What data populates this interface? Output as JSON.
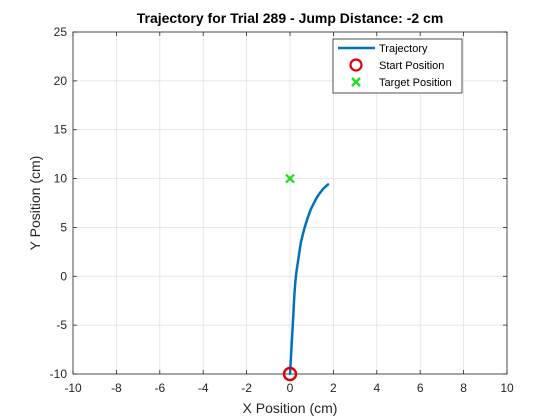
{
  "chart_data": {
    "type": "line",
    "title": "Trajectory for Trial 289 - Jump Distance: -2 cm",
    "xlabel": "X Position (cm)",
    "ylabel": "Y Position (cm)",
    "xlim": [
      -10,
      10
    ],
    "ylim": [
      -10,
      25
    ],
    "xticks": [
      -10,
      -8,
      -6,
      -4,
      -2,
      0,
      2,
      4,
      6,
      8,
      10
    ],
    "yticks": [
      -10,
      -5,
      0,
      5,
      10,
      15,
      20,
      25
    ],
    "grid": true,
    "legend_position": "top-right",
    "legend": [
      {
        "label": "Trajectory",
        "marker": "line",
        "color": "#0072BD"
      },
      {
        "label": "Start Position",
        "marker": "circle",
        "color": "#E0000A"
      },
      {
        "label": "Target Position",
        "marker": "x",
        "color": "#22DD22"
      }
    ],
    "series": [
      {
        "name": "Trajectory",
        "color": "#0072BD",
        "x": [
          0.0,
          0.05,
          0.1,
          0.15,
          0.2,
          0.25,
          0.3,
          0.4,
          0.5,
          0.65,
          0.8,
          0.95,
          1.1,
          1.25,
          1.4,
          1.55,
          1.65,
          1.75
        ],
        "y": [
          -10.0,
          -8.0,
          -6.0,
          -4.0,
          -2.0,
          -0.5,
          0.5,
          2.0,
          3.5,
          4.8,
          5.9,
          6.8,
          7.5,
          8.1,
          8.6,
          9.0,
          9.2,
          9.4
        ]
      }
    ],
    "points": [
      {
        "name": "Start Position",
        "x": 0,
        "y": -10,
        "marker": "circle",
        "color": "#E0000A"
      },
      {
        "name": "Target Position",
        "x": 0,
        "y": 10,
        "marker": "x",
        "color": "#22DD22"
      }
    ]
  }
}
